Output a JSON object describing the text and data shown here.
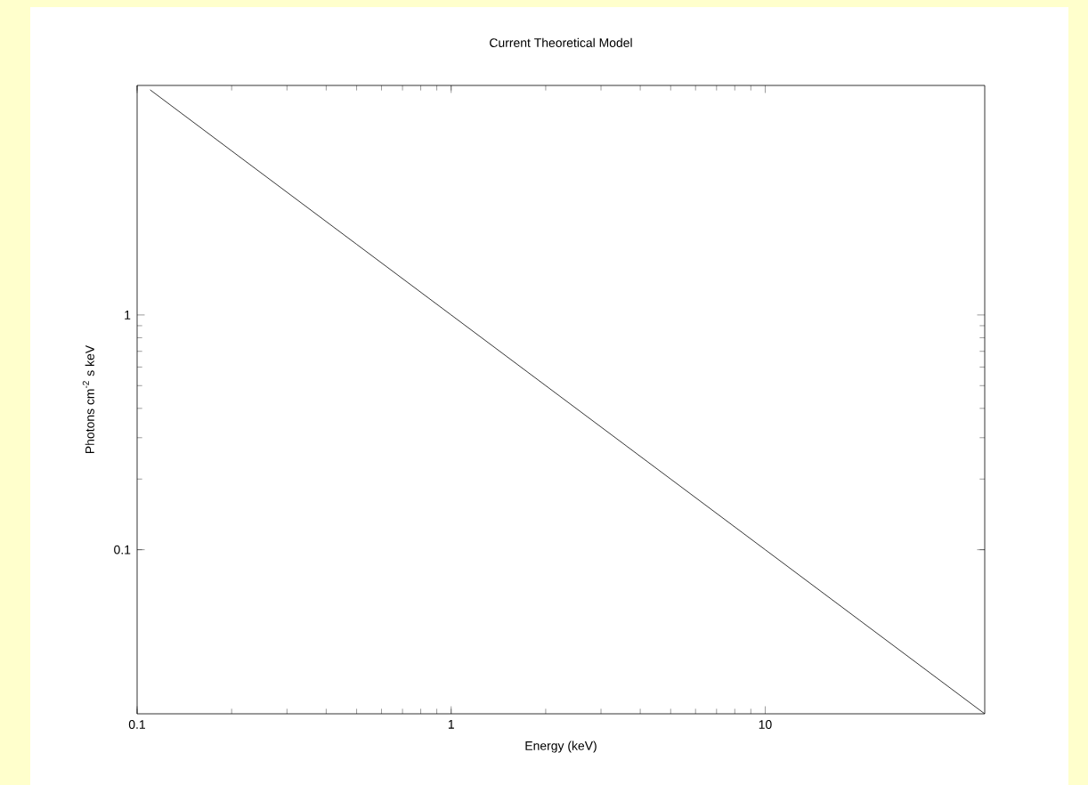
{
  "chart_data": {
    "type": "line",
    "title": "Current Theoretical Model",
    "xlabel": "Energy (keV)",
    "ylabel": "Photons cm$^{-2}$ s keV",
    "x": [
      0.11,
      0.2,
      0.5,
      1,
      2,
      5,
      10,
      20,
      50
    ],
    "series": [
      {
        "color": "#000000",
        "values": [
          9.1,
          5,
          2,
          1,
          0.5,
          0.2,
          0.1,
          0.05,
          0.02
        ]
      }
    ],
    "log": "xy",
    "xlim": [
      0.1,
      50
    ],
    "ylim": [
      0.02,
      9.5
    ],
    "xticks": [
      0.1,
      1,
      10
    ],
    "yticks": [
      0.1,
      1
    ],
    "grid": false,
    "marker": "none",
    "line_style": "solid"
  }
}
